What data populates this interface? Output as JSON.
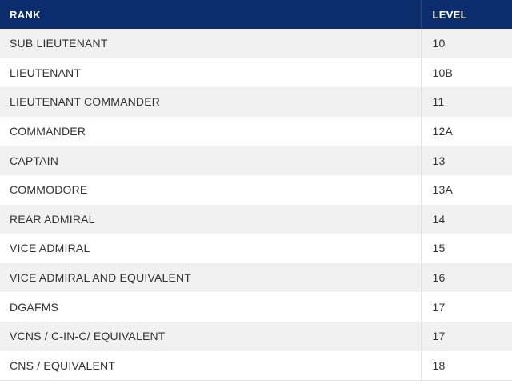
{
  "table": {
    "headers": {
      "rank": "RANK",
      "level": "LEVEL"
    },
    "rows": [
      {
        "rank": "SUB LIEUTENANT",
        "level": "10"
      },
      {
        "rank": "LIEUTENANT",
        "level": "10B"
      },
      {
        "rank": "LIEUTENANT COMMANDER",
        "level": "11"
      },
      {
        "rank": "COMMANDER",
        "level": "12A"
      },
      {
        "rank": "CAPTAIN",
        "level": "13"
      },
      {
        "rank": "COMMODORE",
        "level": "13A"
      },
      {
        "rank": "REAR ADMIRAL",
        "level": "14"
      },
      {
        "rank": "VICE ADMIRAL",
        "level": "15"
      },
      {
        "rank": "VICE ADMIRAL AND EQUIVALENT",
        "level": "16"
      },
      {
        "rank": "DGAFMS",
        "level": "17"
      },
      {
        "rank": "VCNS / C-IN-C/ EQUIVALENT",
        "level": "17"
      },
      {
        "rank": "CNS / EQUIVALENT",
        "level": "18"
      }
    ]
  },
  "colors": {
    "header_bg": "#0b2d6b",
    "row_alt_bg": "#f1f1f1"
  }
}
